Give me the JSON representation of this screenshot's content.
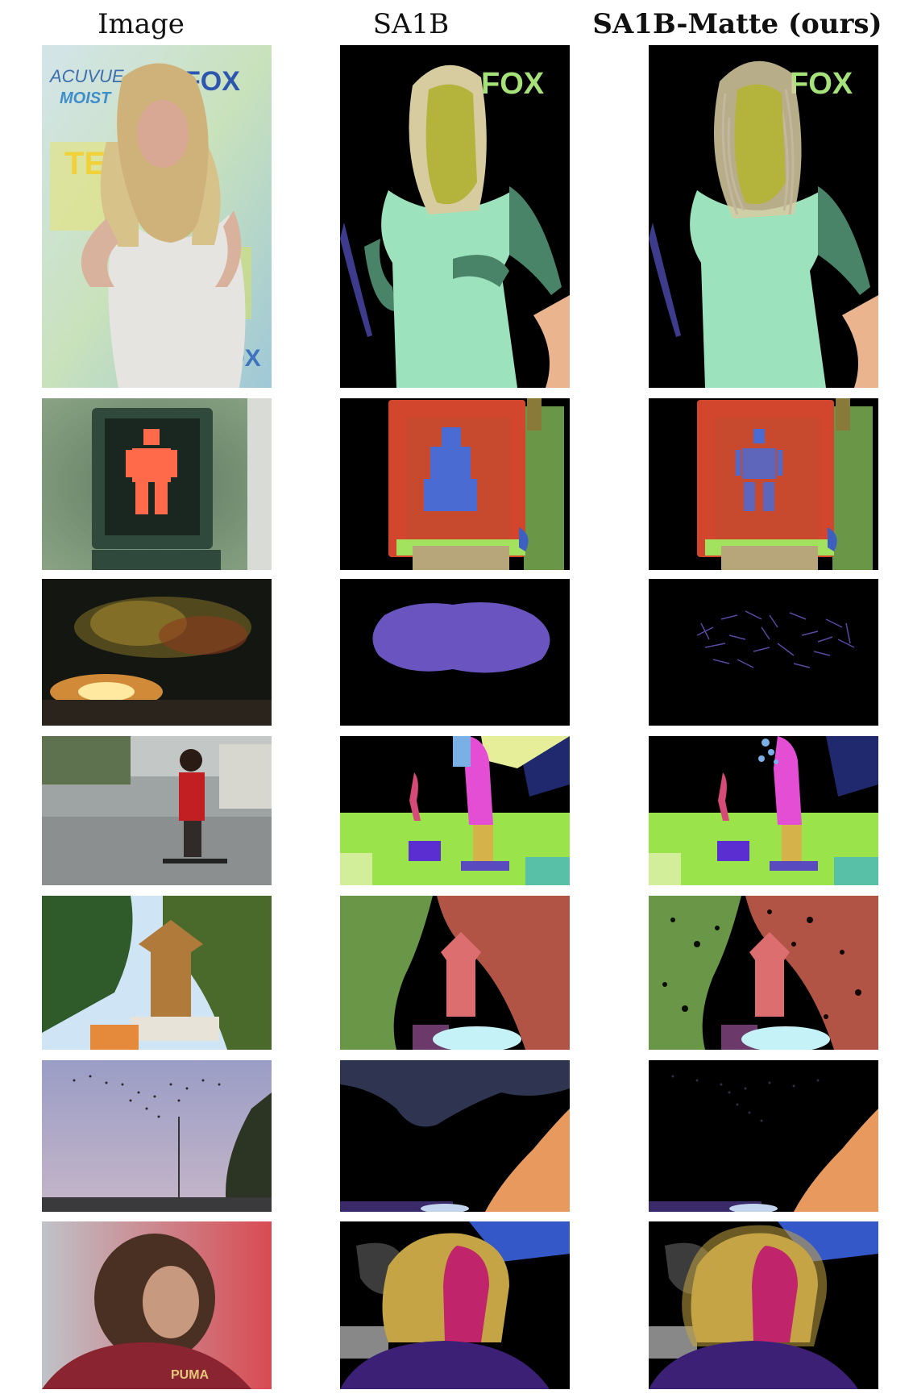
{
  "figure": {
    "columns": [
      {
        "label": "Image"
      },
      {
        "label": "SA1B"
      },
      {
        "label": "SA1B-Matte (ours)"
      }
    ],
    "rows": [
      {
        "name": "woman-red-carpet",
        "visible_text": {
          "image": [
            "ACUVUE",
            "MOIST",
            "TEEN",
            "FOX",
            "FOX"
          ],
          "sa1b": [
            "FOX"
          ],
          "matte": [
            "FOX"
          ]
        }
      },
      {
        "name": "pedestrian-signal"
      },
      {
        "name": "fireworks"
      },
      {
        "name": "skateboarder-street"
      },
      {
        "name": "pagoda-trees"
      },
      {
        "name": "starling-murmuration"
      },
      {
        "name": "curly-hair-athlete",
        "visible_text": {
          "image": [
            "PUMA"
          ]
        }
      }
    ]
  },
  "colors": {
    "mask_background": "#000000",
    "hair": "#d7cba0",
    "face": "#b4b43c",
    "dress": "#9ce2bd",
    "arms": "#4a8468",
    "logo": "#a6e27a",
    "signal_box": "#d2462e",
    "figure_blue": "#4a6bd2",
    "firework": "#6a55c0",
    "skater": "#e34ed4",
    "grass": "#9be34a",
    "tree_green": "#6a9648",
    "tree_red": "#b15446",
    "sky_slate": "#2f3450",
    "tree_orange": "#e89a5e",
    "athlete_gold": "#c4a444",
    "athlete_magenta": "#c0246a"
  }
}
